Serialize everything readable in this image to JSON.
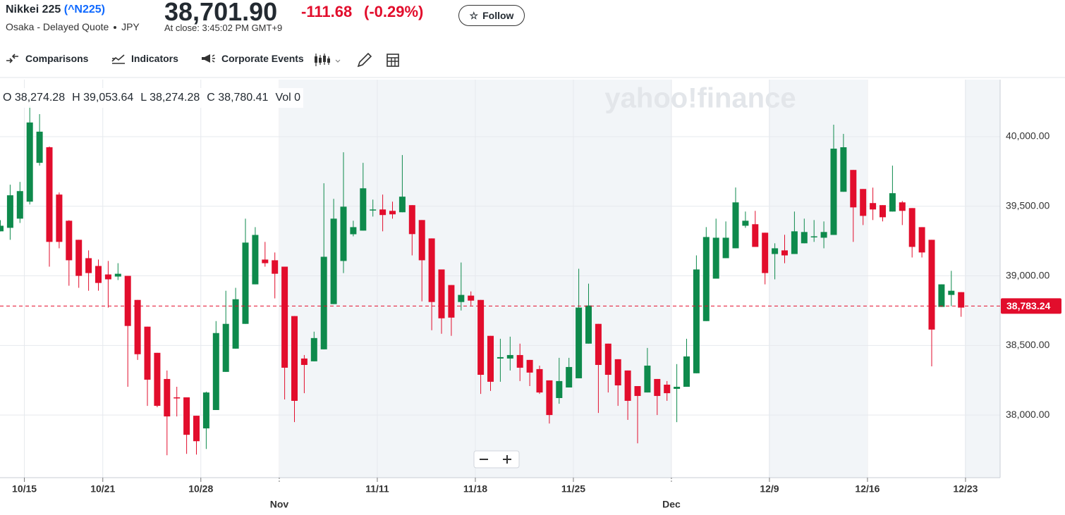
{
  "header": {
    "name": "Nikkei 225",
    "symbol": "(^N225)",
    "exchange": "Osaka - Delayed Quote",
    "currency": "JPY",
    "price": "38,701.90",
    "change": "-111.68",
    "change_pct": "(-0.29%)",
    "close_label": "At close: 3:45:02 PM GMT+9",
    "follow": "Follow"
  },
  "toolbar": [
    "Comparisons",
    "Indicators",
    "Corporate Events"
  ],
  "chart_data": {
    "type": "candlestick",
    "watermark": "yahoo!finance",
    "readout": [
      {
        "label": "O",
        "value": "38,274.28"
      },
      {
        "label": "H",
        "value": "39,053.64"
      },
      {
        "label": "L",
        "value": "38,274.28"
      },
      {
        "label": "C",
        "value": "38,780.41"
      },
      {
        "label": "Vol",
        "value": "0"
      }
    ],
    "categories": [
      null,
      null,
      "10/15",
      null,
      null,
      null,
      null,
      null,
      null,
      null,
      "10/21",
      null,
      null,
      null,
      null,
      null,
      null,
      null,
      null,
      null,
      "10/28",
      null,
      null,
      null,
      null,
      null,
      null,
      null,
      "Nov",
      null,
      null,
      null,
      null,
      null,
      null,
      null,
      null,
      null,
      "11/11",
      null,
      null,
      null,
      null,
      null,
      null,
      null,
      null,
      null,
      "11/18",
      null,
      null,
      null,
      null,
      null,
      null,
      null,
      null,
      null,
      "11/25",
      null,
      null,
      null,
      null,
      null,
      null,
      null,
      null,
      null,
      "Dec",
      null,
      null,
      null,
      null,
      null,
      null,
      null,
      null,
      null,
      "12/9",
      null,
      null,
      null,
      null,
      null,
      null,
      null,
      null,
      null,
      "12/16",
      null,
      null,
      null,
      null,
      null,
      null,
      null,
      null,
      null,
      "12/23"
    ],
    "open": [
      39320,
      39345,
      39411,
      39533,
      39812,
      39924,
      39584,
      39396,
      39259,
      39127,
      39071,
      39010,
      38995,
      39000,
      38827,
      38635,
      38447,
      38259,
      38127,
      38127,
      37995,
      37904,
      38036,
      38310,
      38477,
      38655,
      38939,
      39117,
      39112,
      39066,
      38711,
      38406,
      38386,
      38472,
      38797,
      39107,
      39299,
      39325,
      39472,
      39477,
      39467,
      39457,
      39508,
      39401,
      39269,
      39046,
      38934,
      38812,
      38858,
      38827,
      38569,
      38406,
      38406,
      38431,
      38396,
      38330,
      38249,
      38122,
      38198,
      38264,
      38513,
      38655,
      38513,
      38401,
      38320,
      38208,
      38162,
      38259,
      38218,
      38188,
      38203,
      38300,
      38675,
      38980,
      39127,
      39198,
      39360,
      39371,
      39310,
      39157,
      39183,
      39157,
      39234,
      39279,
      39274,
      39294,
      39604,
      39761,
      39624,
      39523,
      39508,
      39462,
      39528,
      39487,
      39350,
      39259,
      38777,
      38863,
      38883
    ],
    "high": [
      39400,
      39655,
      39675,
      40223,
      40162,
      39930,
      39599,
      39400,
      39259,
      39183,
      39117,
      39107,
      39091,
      39000,
      38827,
      38635,
      38447,
      38320,
      38203,
      38127,
      37995,
      38168,
      38675,
      38893,
      38914,
      39411,
      39350,
      39244,
      39168,
      39066,
      38711,
      38431,
      38599,
      39665,
      39553,
      39888,
      39396,
      39812,
      39548,
      39584,
      39533,
      39868,
      39508,
      39401,
      39269,
      39046,
      38934,
      39096,
      38888,
      38827,
      38569,
      38548,
      38563,
      38513,
      38396,
      38355,
      38249,
      38411,
      38411,
      39051,
      38944,
      38655,
      38513,
      38401,
      38320,
      38208,
      38482,
      38259,
      38244,
      38366,
      38548,
      39147,
      39350,
      39411,
      39391,
      39635,
      39462,
      39467,
      39310,
      39234,
      39295,
      39462,
      39411,
      39401,
      39391,
      40086,
      40020,
      39761,
      39624,
      39634,
      39508,
      39792,
      39538,
      39487,
      39350,
      39259,
      38939,
      39036,
      38883
    ],
    "low": [
      39320,
      39259,
      39380,
      39513,
      39792,
      39066,
      39198,
      38929,
      38914,
      38893,
      38893,
      38772,
      38970,
      38203,
      38396,
      38066,
      38056,
      37711,
      37990,
      37721,
      37716,
      37756,
      38036,
      38310,
      38477,
      38655,
      38939,
      39066,
      38838,
      38112,
      37949,
      38157,
      38386,
      38472,
      38797,
      39020,
      39284,
      39325,
      39426,
      39320,
      39411,
      39457,
      39147,
      38817,
      38609,
      38584,
      38569,
      38751,
      38787,
      38152,
      38173,
      38239,
      38320,
      38244,
      38208,
      38152,
      37939,
      38081,
      38198,
      38264,
      38513,
      38015,
      38162,
      38066,
      37965,
      37797,
      38162,
      38000,
      38102,
      37949,
      38203,
      38300,
      38675,
      38980,
      39127,
      39198,
      39345,
      39208,
      38939,
      38975,
      39091,
      39157,
      39234,
      39244,
      39198,
      39294,
      39604,
      39244,
      39365,
      39401,
      39391,
      39462,
      39365,
      39132,
      39132,
      38350,
      38777,
      38782,
      38706
    ],
    "close": [
      39360,
      39579,
      39609,
      40102,
      40036,
      39244,
      39244,
      39112,
      39000,
      39020,
      38949,
      38975,
      39015,
      38640,
      38437,
      38254,
      38066,
      37990,
      38122,
      37858,
      37812,
      38162,
      38589,
      38655,
      38832,
      39239,
      39294,
      39091,
      39015,
      38340,
      38102,
      38360,
      38553,
      39137,
      39411,
      39497,
      39350,
      39629,
      39477,
      39437,
      39442,
      39569,
      39300,
      39112,
      38812,
      38695,
      38700,
      38863,
      38822,
      38289,
      38239,
      38416,
      38431,
      38340,
      38305,
      38162,
      38000,
      38244,
      38345,
      38772,
      38787,
      38360,
      38289,
      38213,
      38102,
      38137,
      38355,
      38137,
      38157,
      38203,
      38421,
      39046,
      39279,
      39274,
      39274,
      39528,
      39396,
      39208,
      39020,
      39198,
      39147,
      39320,
      39315,
      39284,
      39315,
      39914,
      39924,
      39492,
      39431,
      39477,
      39421,
      39594,
      39467,
      39208,
      39168,
      38614,
      38939,
      38893,
      38772
    ],
    "up_color": "#0e8a4c",
    "down_color": "#e20d2c",
    "ylim": [
      37550,
      40410
    ],
    "yticks": [
      {
        "value": 38000,
        "label": "38,000.00"
      },
      {
        "value": 38500,
        "label": "38,500.00"
      },
      {
        "value": 39000,
        "label": "39,000.00"
      },
      {
        "value": 39500,
        "label": "39,500.00"
      },
      {
        "value": 40000,
        "label": "40,000.00"
      }
    ],
    "grid": true,
    "last_value": {
      "value": 38783.24,
      "label": "38,783.24"
    }
  }
}
